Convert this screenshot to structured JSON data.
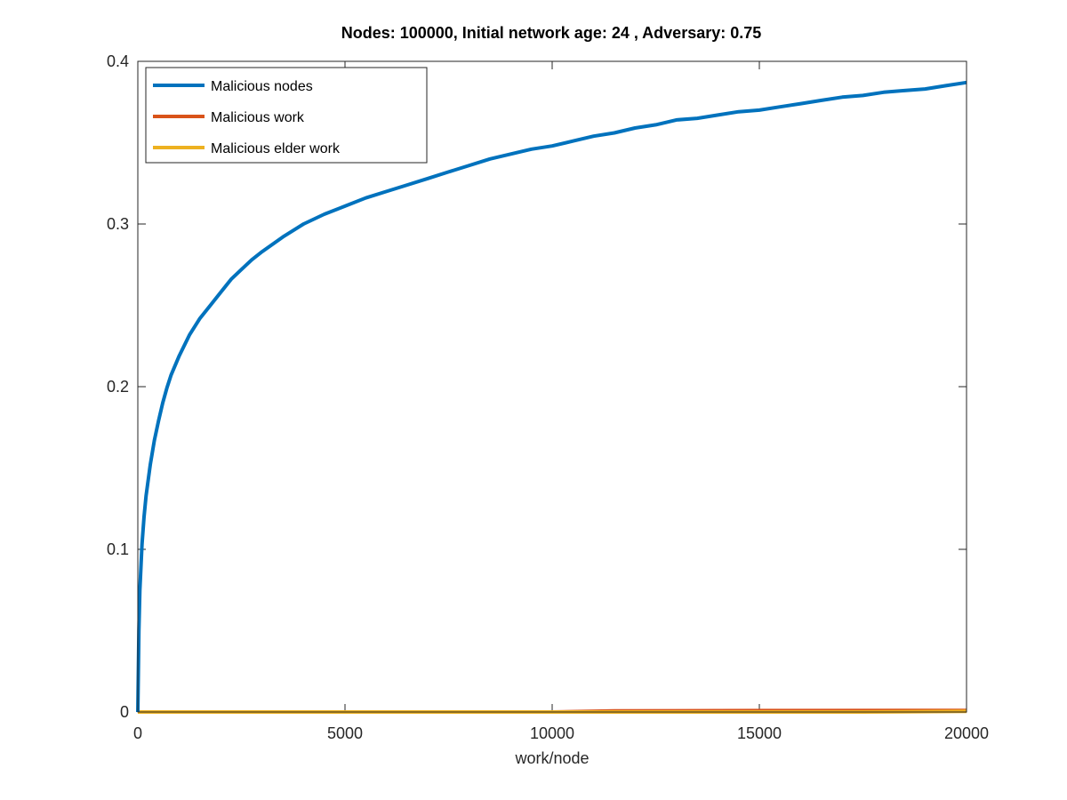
{
  "chart_data": {
    "type": "line",
    "title": "Nodes: 100000, Initial network age: 24 , Adversary: 0.75",
    "xlabel": "work/node",
    "ylabel": "",
    "xlim": [
      0,
      20000
    ],
    "ylim": [
      0,
      0.4
    ],
    "xticks": [
      0,
      5000,
      10000,
      15000,
      20000
    ],
    "yticks": [
      0,
      0.1,
      0.2,
      0.3,
      0.4
    ],
    "grid": false,
    "legend_position": "top-left",
    "series": [
      {
        "name": "Malicious nodes",
        "color": "#0072BD",
        "x": [
          0,
          25,
          50,
          100,
          150,
          200,
          300,
          400,
          500,
          600,
          700,
          800,
          1000,
          1250,
          1500,
          1750,
          2000,
          2250,
          2500,
          2750,
          3000,
          3500,
          4000,
          4500,
          5000,
          5500,
          6000,
          6500,
          7000,
          7500,
          8000,
          8500,
          9000,
          9500,
          10000,
          10500,
          11000,
          11500,
          12000,
          12500,
          13000,
          13500,
          14000,
          14500,
          15000,
          15500,
          16000,
          16500,
          17000,
          17500,
          18000,
          18500,
          19000,
          19500,
          20000
        ],
        "values": [
          0.0,
          0.05,
          0.075,
          0.103,
          0.12,
          0.133,
          0.152,
          0.167,
          0.179,
          0.19,
          0.199,
          0.207,
          0.219,
          0.232,
          0.242,
          0.25,
          0.258,
          0.266,
          0.272,
          0.278,
          0.283,
          0.292,
          0.3,
          0.306,
          0.311,
          0.316,
          0.32,
          0.324,
          0.328,
          0.332,
          0.336,
          0.34,
          0.343,
          0.346,
          0.348,
          0.351,
          0.354,
          0.356,
          0.359,
          0.361,
          0.364,
          0.365,
          0.367,
          0.369,
          0.37,
          0.372,
          0.374,
          0.376,
          0.378,
          0.379,
          0.381,
          0.382,
          0.383,
          0.385,
          0.387
        ]
      },
      {
        "name": "Malicious work",
        "color": "#D95319",
        "x": [
          0,
          5000,
          10000,
          11500,
          15000,
          20000
        ],
        "values": [
          0.0,
          0.0,
          0.0,
          0.0007,
          0.0009,
          0.001
        ]
      },
      {
        "name": "Malicious elder work",
        "color": "#EDB120",
        "x": [
          0,
          5000,
          10000,
          15000,
          17500,
          20000
        ],
        "values": [
          0.0,
          0.0,
          0.0,
          0.0,
          0.0,
          0.0004
        ]
      }
    ]
  }
}
